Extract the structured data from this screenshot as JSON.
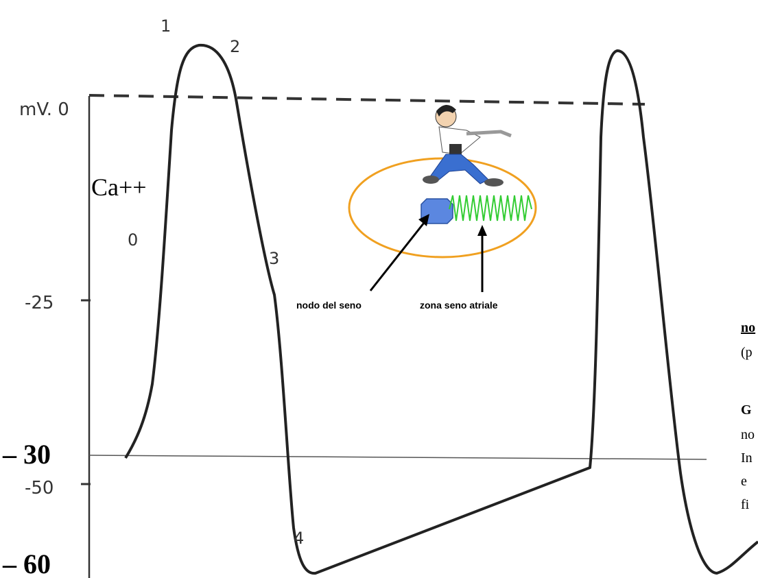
{
  "axis_labels": {
    "zero": "mV. 0",
    "m25": "-25",
    "m30": "– 30",
    "m50": "-50",
    "m60": "– 60"
  },
  "phase_labels": [
    "0",
    "1",
    "2",
    "3",
    "4"
  ],
  "ion_label": "Ca++",
  "inset": {
    "node_label": "nodo del seno",
    "zone_label": "zona seno atriale"
  },
  "side_text": [
    "no",
    "(p",
    "G",
    "no",
    "In",
    "e",
    "fi"
  ]
}
